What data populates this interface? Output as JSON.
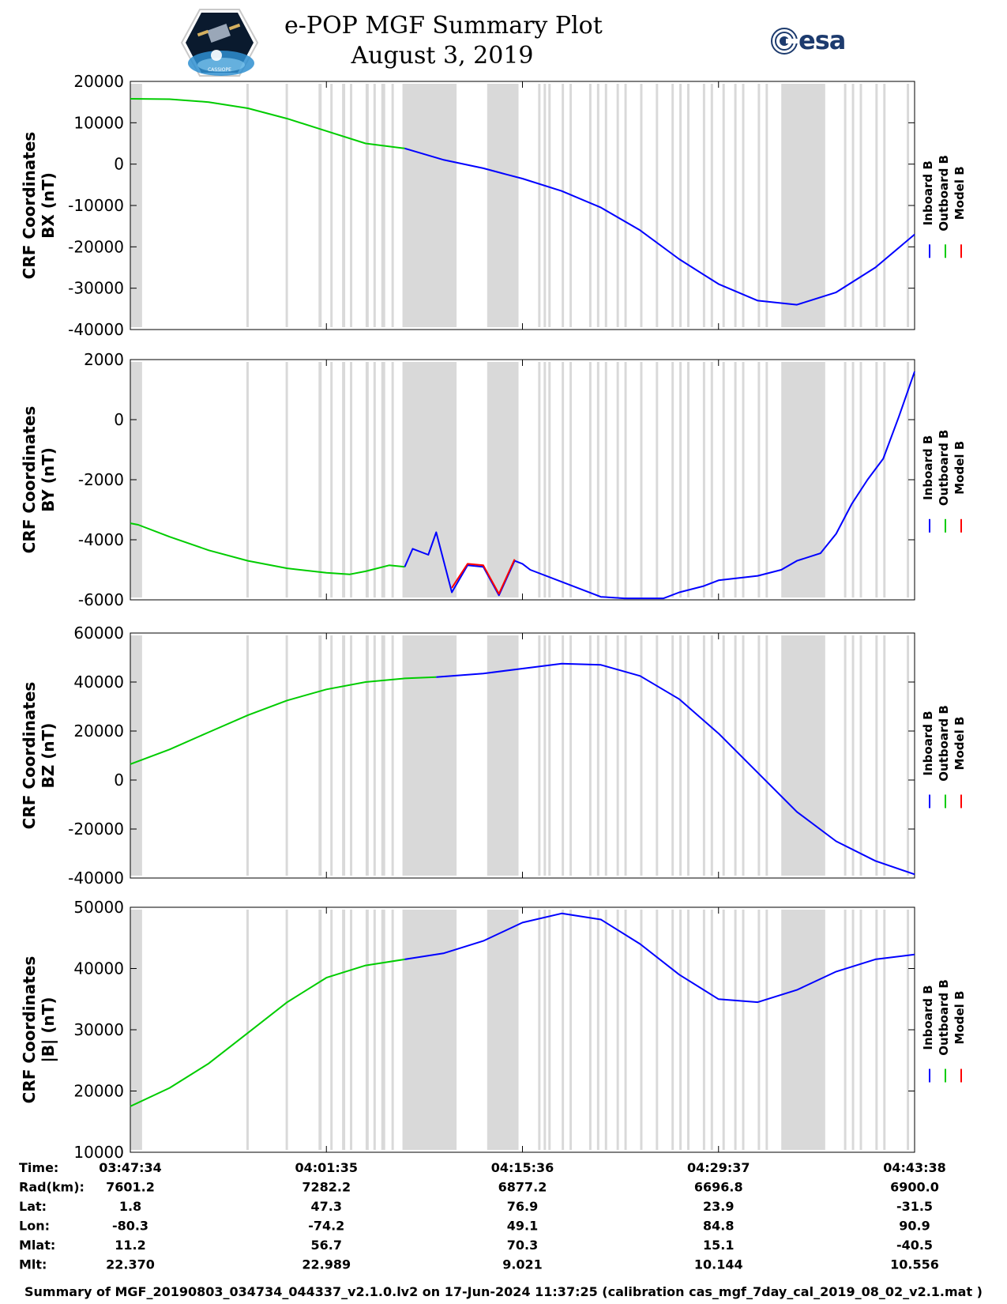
{
  "header": {
    "title_line1": "e-POP MGF Summary Plot",
    "title_line2": "August 3, 2019",
    "left_logo_text": "CASSIOPE",
    "right_logo_text": "esa"
  },
  "legend": {
    "labels": [
      "Inboard B",
      "Outboard B",
      "Model B"
    ],
    "colors": [
      "#0000ff",
      "#00cc00",
      "#ff0000"
    ]
  },
  "chart_data": [
    {
      "type": "line",
      "ylabel_line1": "CRF Coordinates",
      "ylabel_line2": "BX (nT)",
      "ylim": [
        -40000,
        20000
      ],
      "yticks": [
        20000,
        10000,
        0,
        -10000,
        -20000,
        -30000,
        -40000
      ],
      "ytick_labels": [
        "20000",
        "10000",
        "0",
        "-10000",
        "-20000",
        "-30000",
        "-40000"
      ],
      "series": [
        {
          "name": "Outboard B",
          "color": "#00cc00",
          "x": [
            0,
            0.05,
            0.1,
            0.15,
            0.2,
            0.25,
            0.3,
            0.35
          ],
          "y": [
            15800,
            15700,
            15000,
            13500,
            11000,
            8000,
            5000,
            3800
          ]
        },
        {
          "name": "Inboard B",
          "color": "#0000ff",
          "x": [
            0.35,
            0.4,
            0.45,
            0.48,
            0.5,
            0.55,
            0.6,
            0.65,
            0.7,
            0.75,
            0.8,
            0.85,
            0.9,
            0.95,
            1.0
          ],
          "y": [
            3800,
            1000,
            -1000,
            -2500,
            -3500,
            -6500,
            -10500,
            -16000,
            -23000,
            -29000,
            -33000,
            -34000,
            -31000,
            -25000,
            -17000
          ]
        }
      ]
    },
    {
      "type": "line",
      "ylabel_line1": "CRF Coordinates",
      "ylabel_line2": "BY (nT)",
      "ylim": [
        -6000,
        2000
      ],
      "yticks": [
        2000,
        0,
        -2000,
        -4000,
        -6000
      ],
      "ytick_labels": [
        "2000",
        "0",
        "-2000",
        "-4000",
        "-6000"
      ],
      "series": [
        {
          "name": "Outboard B",
          "color": "#00cc00",
          "x": [
            0,
            0.01,
            0.05,
            0.1,
            0.15,
            0.2,
            0.25,
            0.28,
            0.3,
            0.33,
            0.35
          ],
          "y": [
            -3450,
            -3500,
            -3900,
            -4350,
            -4700,
            -4950,
            -5100,
            -5150,
            -5050,
            -4850,
            -4900
          ]
        },
        {
          "name": "Inboard B",
          "color": "#0000ff",
          "x": [
            0.35,
            0.36,
            0.38,
            0.39,
            0.41,
            0.43,
            0.45,
            0.47,
            0.49,
            0.5,
            0.51,
            0.55,
            0.6,
            0.63,
            0.68,
            0.7,
            0.73,
            0.75,
            0.8,
            0.83,
            0.85,
            0.88,
            0.9,
            0.92,
            0.94,
            0.96,
            0.98,
            1.0
          ],
          "y": [
            -4900,
            -4300,
            -4500,
            -3750,
            -5750,
            -4850,
            -4900,
            -5850,
            -4700,
            -4800,
            -5000,
            -5400,
            -5900,
            -5950,
            -5950,
            -5750,
            -5550,
            -5350,
            -5200,
            -5000,
            -4700,
            -4450,
            -3800,
            -2800,
            -2000,
            -1300,
            100,
            1600
          ]
        },
        {
          "name": "Model B",
          "color": "#ff0000",
          "x": [
            0.41,
            0.43,
            0.45,
            0.47,
            0.49
          ],
          "y": [
            -5600,
            -4800,
            -4850,
            -5800,
            -4650
          ]
        }
      ]
    },
    {
      "type": "line",
      "ylabel_line1": "CRF Coordinates",
      "ylabel_line2": "BZ (nT)",
      "ylim": [
        -40000,
        60000
      ],
      "yticks": [
        60000,
        40000,
        20000,
        0,
        -20000,
        -40000
      ],
      "ytick_labels": [
        "60000",
        "40000",
        "20000",
        "0",
        "-20000",
        "-40000"
      ],
      "series": [
        {
          "name": "Outboard B",
          "color": "#00cc00",
          "x": [
            0,
            0.05,
            0.1,
            0.15,
            0.2,
            0.25,
            0.3,
            0.35,
            0.39
          ],
          "y": [
            6500,
            12500,
            19500,
            26500,
            32500,
            37000,
            40000,
            41500,
            42000
          ]
        },
        {
          "name": "Inboard B",
          "color": "#0000ff",
          "x": [
            0.39,
            0.45,
            0.5,
            0.55,
            0.6,
            0.65,
            0.7,
            0.75,
            0.8,
            0.85,
            0.9,
            0.95,
            1.0
          ],
          "y": [
            42000,
            43500,
            45500,
            47500,
            47000,
            42500,
            33000,
            19000,
            3000,
            -13000,
            -25000,
            -33000,
            -38500
          ]
        }
      ]
    },
    {
      "type": "line",
      "ylabel_line1": "CRF Coordinates",
      "ylabel_line2": "|B| (nT)",
      "ylim": [
        10000,
        50000
      ],
      "yticks": [
        50000,
        40000,
        30000,
        20000,
        10000
      ],
      "ytick_labels": [
        "50000",
        "40000",
        "30000",
        "20000",
        "10000"
      ],
      "series": [
        {
          "name": "Outboard B",
          "color": "#00cc00",
          "x": [
            0,
            0.05,
            0.1,
            0.15,
            0.2,
            0.25,
            0.3,
            0.35
          ],
          "y": [
            17500,
            20500,
            24500,
            29500,
            34500,
            38500,
            40500,
            41500
          ]
        },
        {
          "name": "Inboard B",
          "color": "#0000ff",
          "x": [
            0.35,
            0.4,
            0.45,
            0.5,
            0.55,
            0.6,
            0.65,
            0.7,
            0.75,
            0.8,
            0.85,
            0.9,
            0.95,
            1.0
          ],
          "y": [
            41500,
            42500,
            44500,
            47500,
            49000,
            48000,
            44000,
            39000,
            35000,
            34500,
            36500,
            39500,
            41500,
            42300
          ]
        }
      ]
    }
  ],
  "gaps": [
    [
      0.0,
      0.015
    ],
    [
      0.148,
      0.151
    ],
    [
      0.198,
      0.201
    ],
    [
      0.24,
      0.244
    ],
    [
      0.255,
      0.258
    ],
    [
      0.27,
      0.274
    ],
    [
      0.28,
      0.283
    ],
    [
      0.3,
      0.304
    ],
    [
      0.31,
      0.313
    ],
    [
      0.32,
      0.325
    ],
    [
      0.333,
      0.336
    ],
    [
      0.347,
      0.416
    ],
    [
      0.455,
      0.495
    ],
    [
      0.52,
      0.523
    ],
    [
      0.527,
      0.53
    ],
    [
      0.533,
      0.536
    ],
    [
      0.55,
      0.553
    ],
    [
      0.56,
      0.563
    ],
    [
      0.585,
      0.588
    ],
    [
      0.595,
      0.598
    ],
    [
      0.605,
      0.608
    ],
    [
      0.62,
      0.623
    ],
    [
      0.63,
      0.633
    ],
    [
      0.65,
      0.653
    ],
    [
      0.67,
      0.673
    ],
    [
      0.69,
      0.693
    ],
    [
      0.7,
      0.703
    ],
    [
      0.71,
      0.713
    ],
    [
      0.73,
      0.733
    ],
    [
      0.74,
      0.743
    ],
    [
      0.755,
      0.758
    ],
    [
      0.77,
      0.773
    ],
    [
      0.78,
      0.783
    ],
    [
      0.8,
      0.803
    ],
    [
      0.81,
      0.813
    ],
    [
      0.83,
      0.886
    ],
    [
      0.91,
      0.913
    ],
    [
      0.92,
      0.923
    ],
    [
      0.93,
      0.933
    ],
    [
      0.95,
      0.953
    ],
    [
      0.96,
      0.963
    ],
    [
      0.99,
      0.993
    ]
  ],
  "x_axis": {
    "tick_positions": [
      0,
      0.25,
      0.5,
      0.75,
      1.0
    ]
  },
  "info_table": {
    "rows": [
      {
        "label": "Time:",
        "values": [
          "03:47:34",
          "04:01:35",
          "04:15:36",
          "04:29:37",
          "04:43:38"
        ]
      },
      {
        "label": "Rad(km):",
        "values": [
          "7601.2",
          "7282.2",
          "6877.2",
          "6696.8",
          "6900.0"
        ]
      },
      {
        "label": "Lat:",
        "values": [
          "1.8",
          "47.3",
          "76.9",
          "23.9",
          "-31.5"
        ]
      },
      {
        "label": "Lon:",
        "values": [
          "-80.3",
          "-74.2",
          "49.1",
          "84.8",
          "90.9"
        ]
      },
      {
        "label": "Mlat:",
        "values": [
          "11.2",
          "56.7",
          "70.3",
          "15.1",
          "-40.5"
        ]
      },
      {
        "label": "Mlt:",
        "values": [
          "22.370",
          "22.989",
          "9.021",
          "10.144",
          "10.556"
        ]
      }
    ]
  },
  "footer": {
    "text": "Summary of MGF_20190803_034734_044337_v2.1.0.lv2 on 17-Jun-2024 11:37:25 (calibration cas_mgf_7day_cal_2019_08_02_v2.1.mat )"
  }
}
